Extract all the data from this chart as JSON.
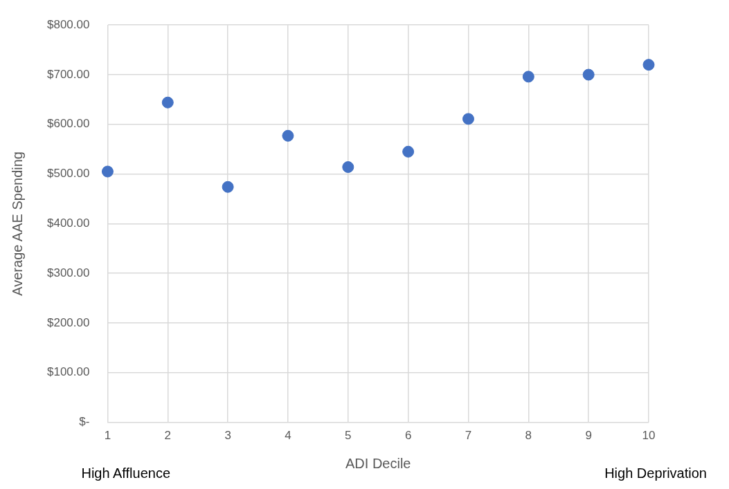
{
  "chart_data": {
    "type": "scatter",
    "xlabel": "ADI Decile",
    "ylabel": "Average AAE Spending",
    "x": [
      1,
      2,
      3,
      4,
      5,
      6,
      7,
      8,
      9,
      10
    ],
    "series": [
      {
        "color": "#4472c4",
        "values": [
          505,
          644,
          474,
          577,
          514,
          545,
          611,
          696,
          700,
          720
        ]
      }
    ],
    "xlim": [
      1,
      10
    ],
    "xticks": [
      1,
      2,
      3,
      4,
      5,
      6,
      7,
      8,
      9,
      10
    ],
    "ylim": [
      0,
      800
    ],
    "yticks": [
      {
        "value": 0,
        "label": "$-"
      },
      {
        "value": 100,
        "label": "$100.00"
      },
      {
        "value": 200,
        "label": "$200.00"
      },
      {
        "value": 300,
        "label": "$300.00"
      },
      {
        "value": 400,
        "label": "$400.00"
      },
      {
        "value": 500,
        "label": "$500.00"
      },
      {
        "value": 600,
        "label": "$600.00"
      },
      {
        "value": 700,
        "label": "$700.00"
      },
      {
        "value": 800,
        "label": "$800.00"
      }
    ],
    "grid": true,
    "marker": "circle",
    "legend": false,
    "annotations": [
      "High Affluence",
      "High Deprivation"
    ]
  }
}
